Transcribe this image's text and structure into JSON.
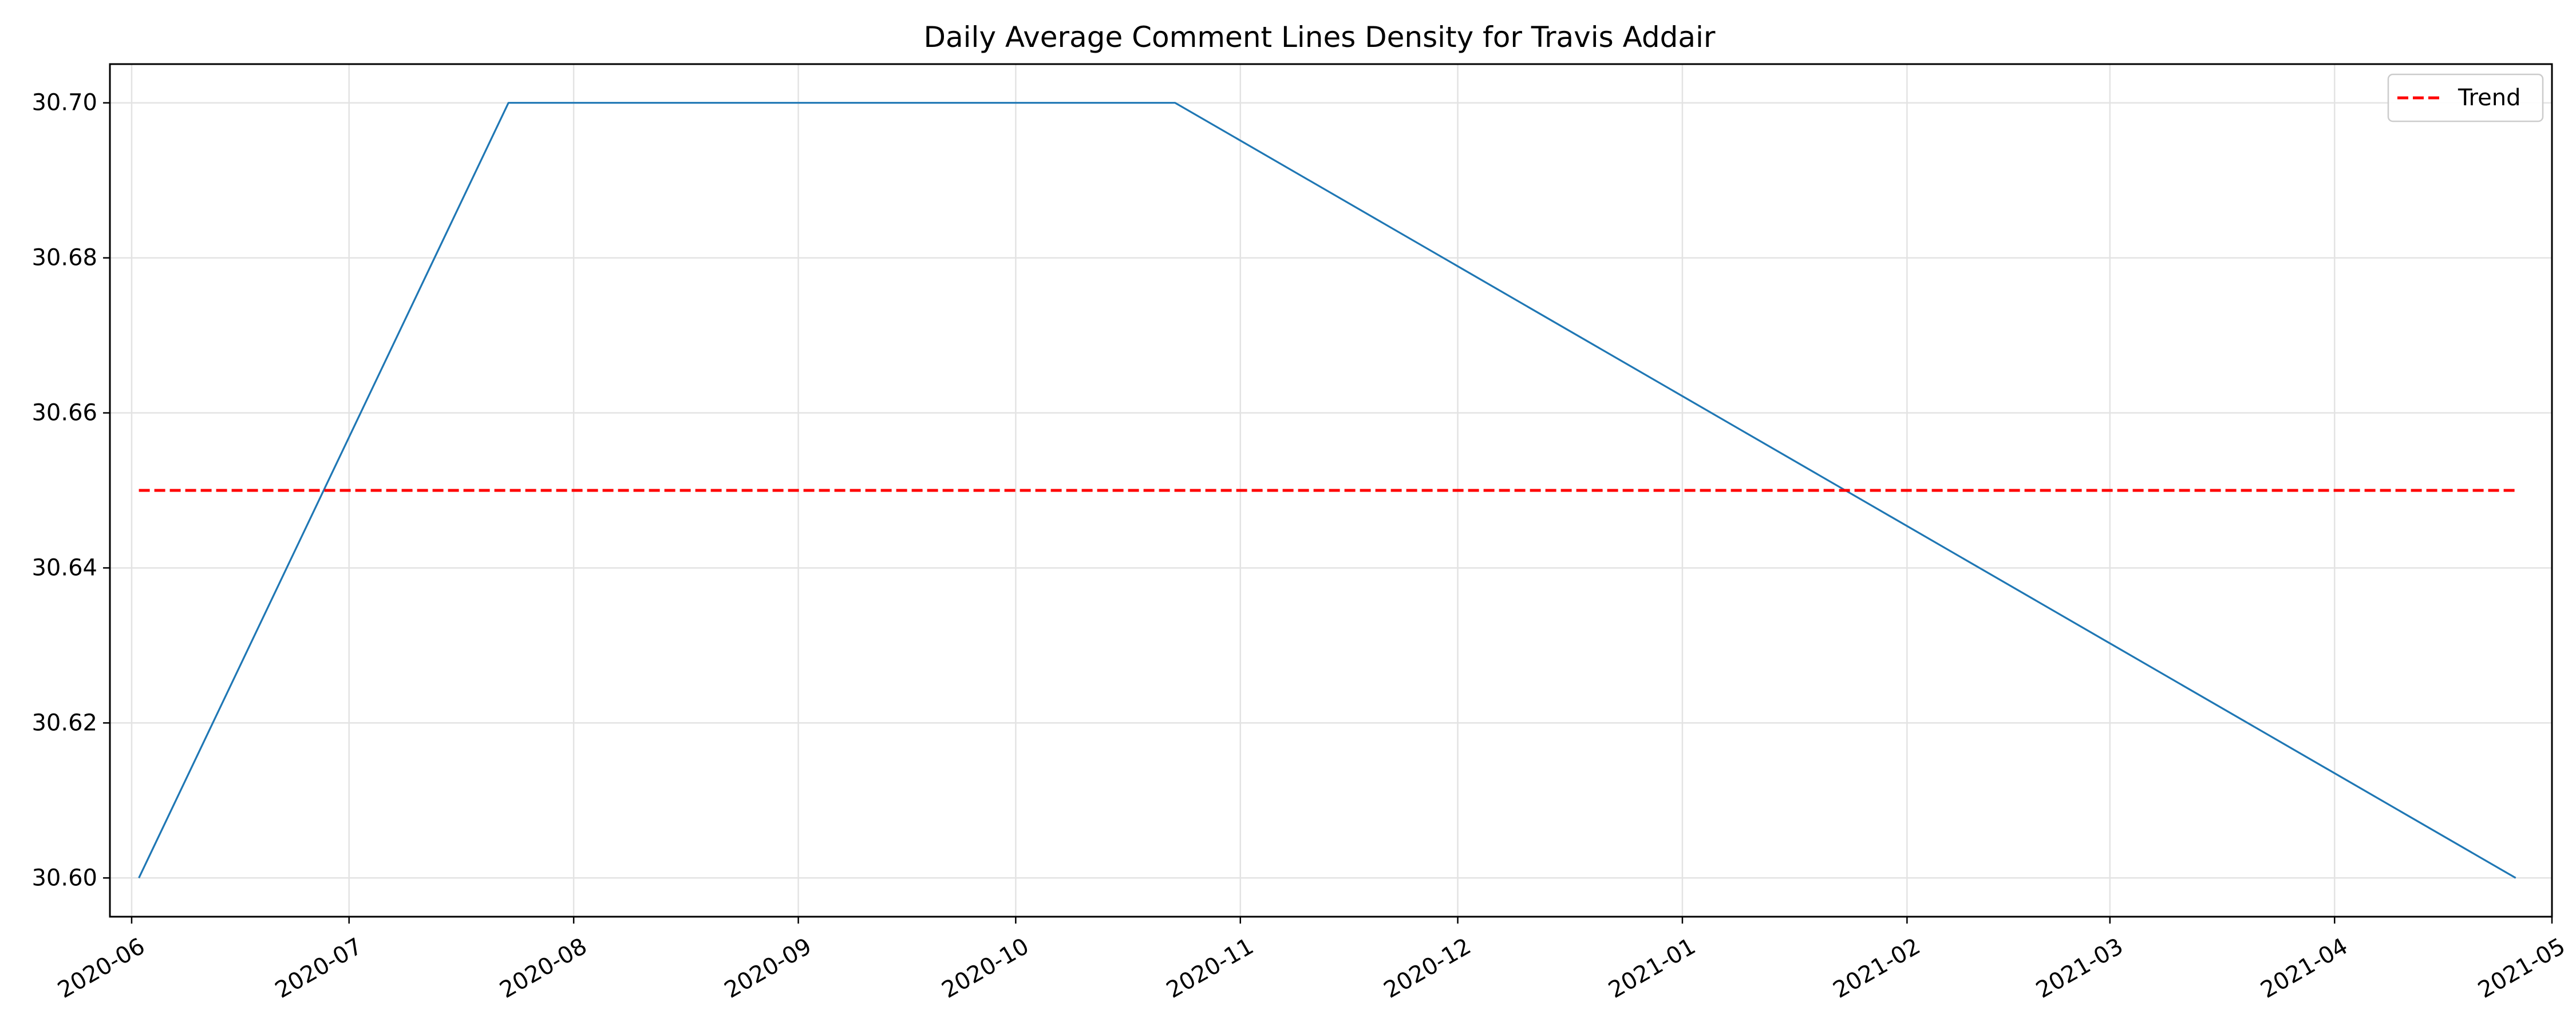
{
  "chart_data": {
    "type": "line",
    "title": "Daily Average Comment Lines Density for Travis Addair",
    "xlabel": "",
    "ylabel": "",
    "x_type": "date",
    "xlim": [
      "2020-05-29",
      "2021-05-01"
    ],
    "ylim": [
      30.595,
      30.705
    ],
    "x_ticks": [
      "2020-06-01",
      "2020-07-01",
      "2020-08-01",
      "2020-09-01",
      "2020-10-01",
      "2020-11-01",
      "2020-12-01",
      "2021-01-01",
      "2021-02-01",
      "2021-03-01",
      "2021-04-01",
      "2021-05-01"
    ],
    "x_tick_labels": [
      "2020-06",
      "2020-07",
      "2020-08",
      "2020-09",
      "2020-10",
      "2020-11",
      "2020-12",
      "2021-01",
      "2021-02",
      "2021-03",
      "2021-04",
      "2021-05"
    ],
    "y_ticks": [
      30.6,
      30.62,
      30.64,
      30.66,
      30.68,
      30.7
    ],
    "y_tick_labels": [
      "30.60",
      "30.62",
      "30.64",
      "30.66",
      "30.68",
      "30.70"
    ],
    "grid": true,
    "legend_position": "top-right",
    "series": [
      {
        "x": [
          "2020-06-02",
          "2020-07-23",
          "2020-10-23",
          "2021-04-26"
        ],
        "y": [
          30.6,
          30.7,
          30.7,
          30.6
        ],
        "color": "#1f77b4",
        "style": "solid"
      },
      {
        "name": "Trend",
        "x": [
          "2020-06-02",
          "2021-04-26"
        ],
        "y": [
          30.65,
          30.65
        ],
        "color": "#ff0000",
        "style": "dashed"
      }
    ]
  }
}
